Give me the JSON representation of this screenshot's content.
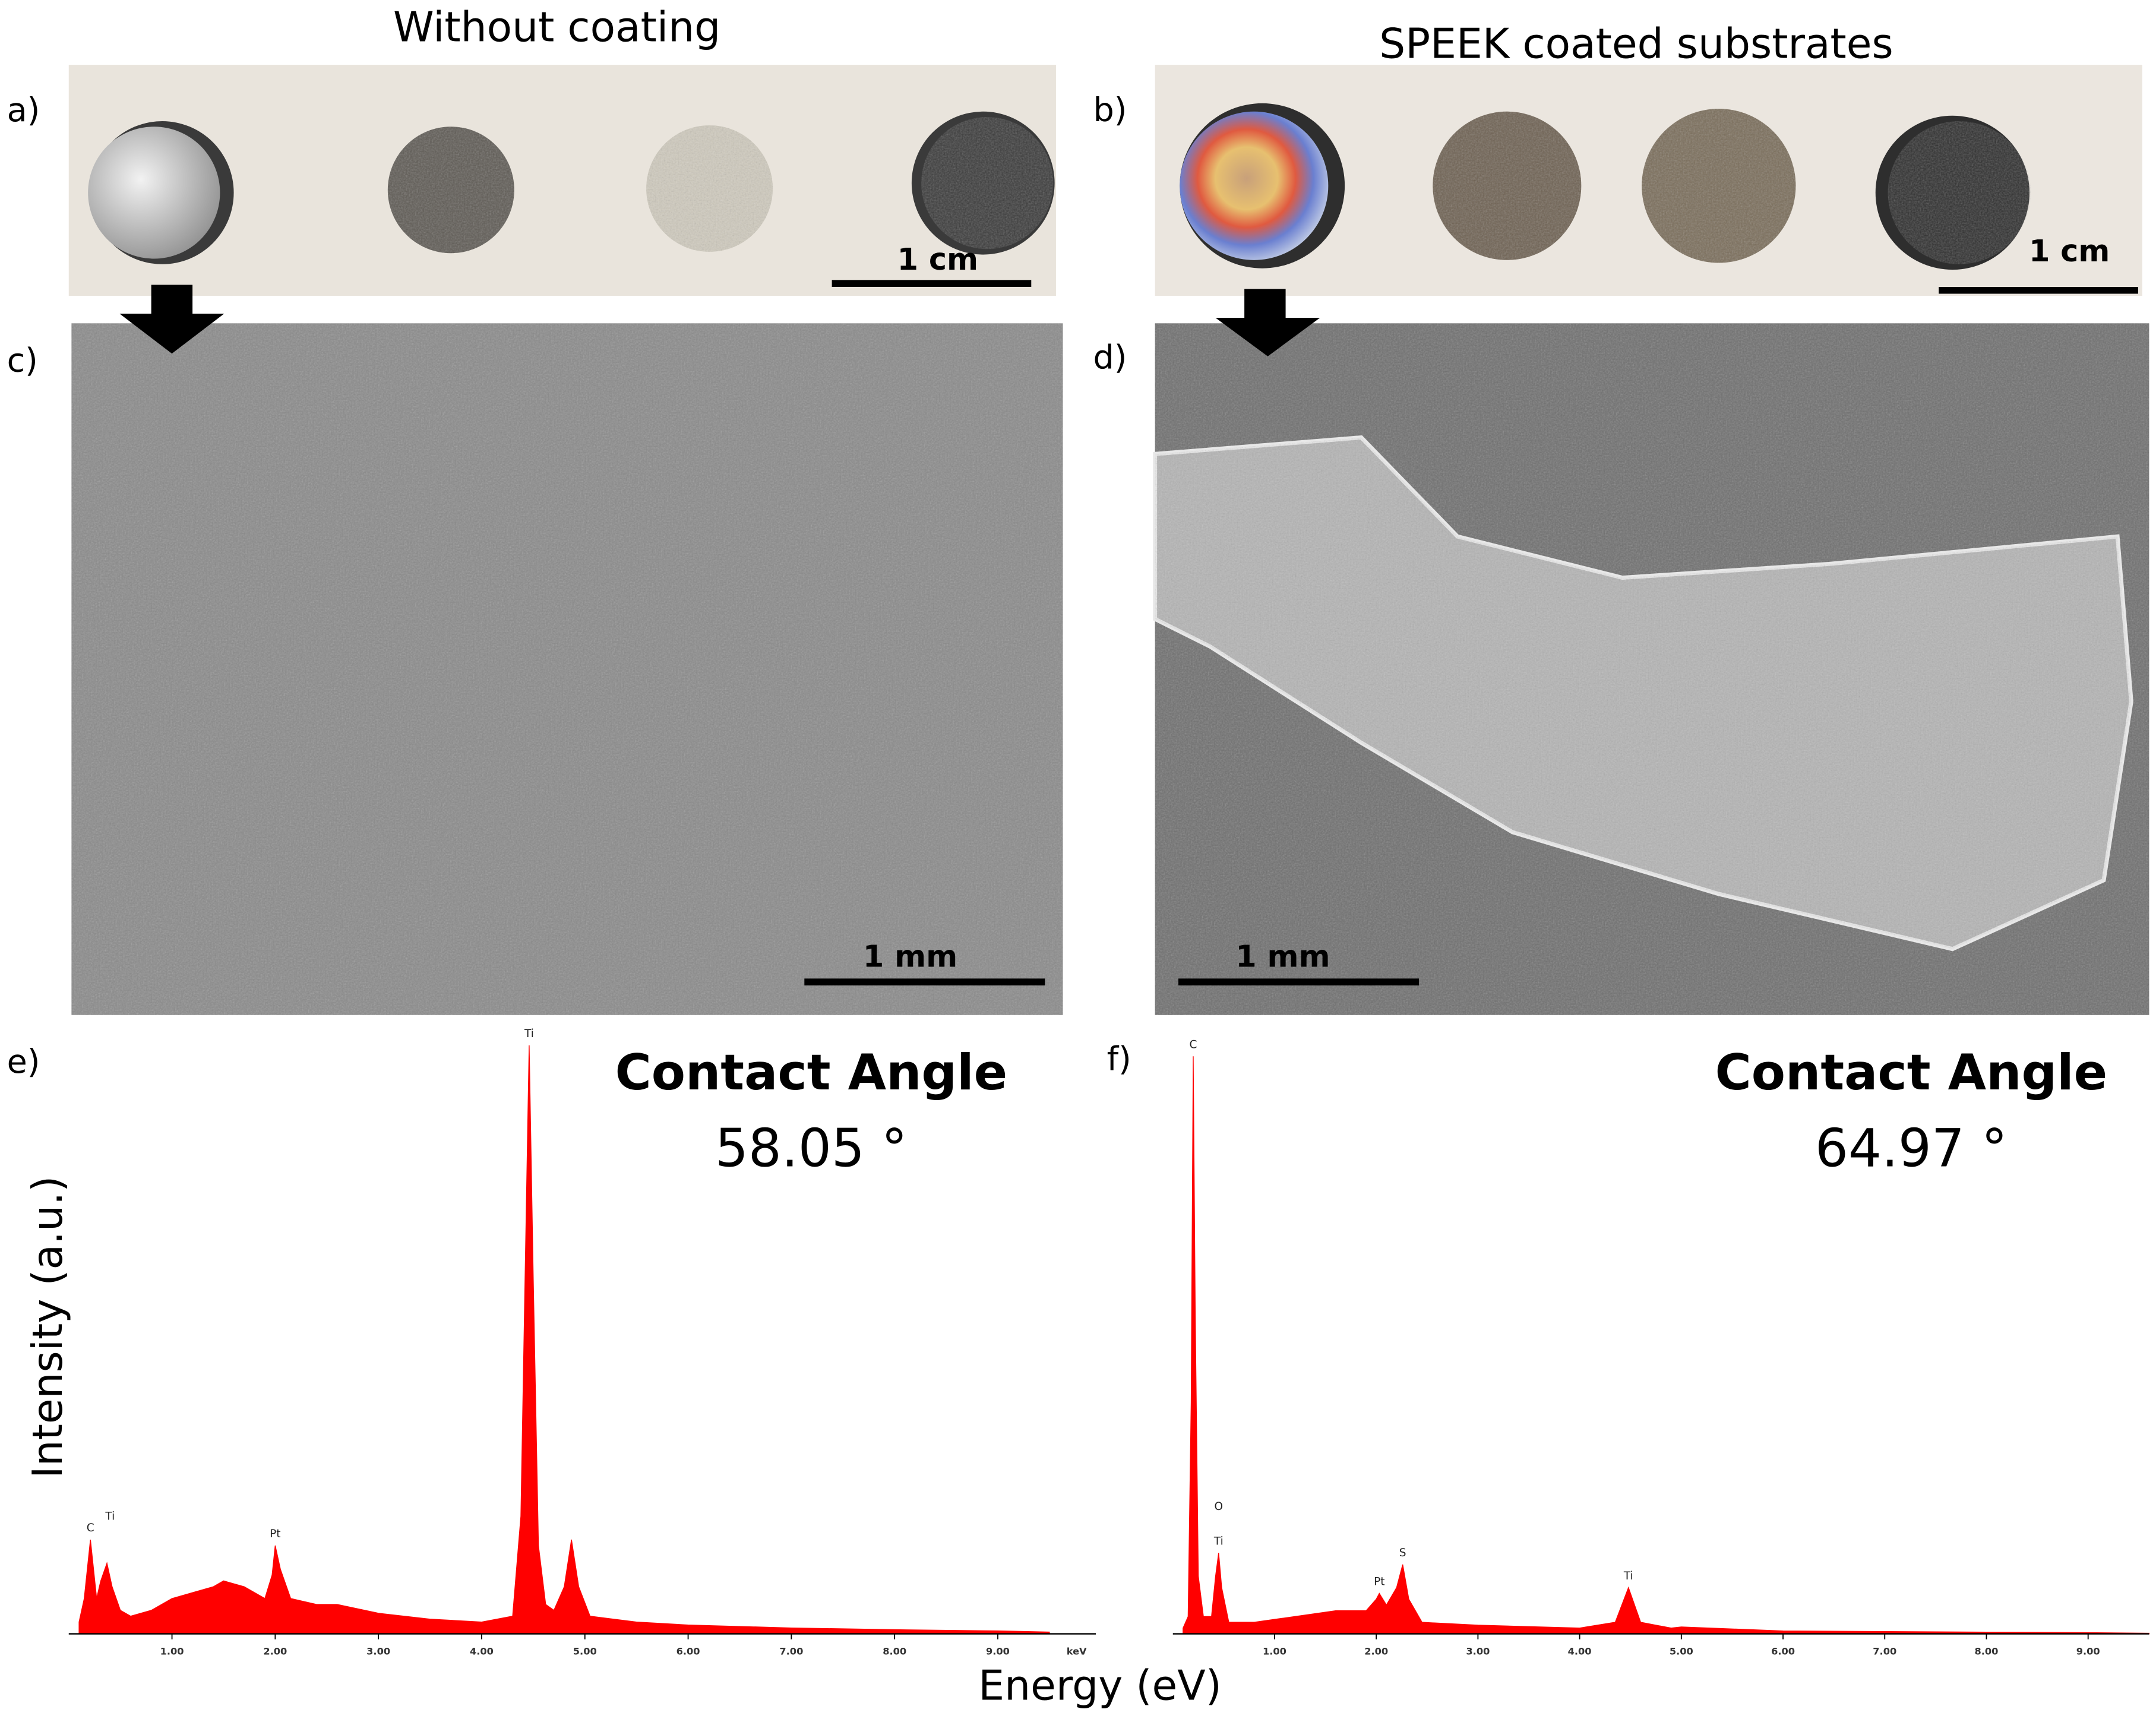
{
  "headers": [
    "Without coating",
    "SPEEK coated substrates"
  ],
  "panels": [
    {
      "label": "a)",
      "scale_bar": "1 cm"
    },
    {
      "label": "b)",
      "scale_bar": "1 cm"
    },
    {
      "label": "c)",
      "scale_bar": "1 mm"
    },
    {
      "label": "d)",
      "scale_bar": "1 mm"
    },
    {
      "label": "e)"
    },
    {
      "label": "f)"
    }
  ],
  "axis_labels": {
    "y": "Intensity (a.u.)",
    "x": "Energy (eV)"
  },
  "chart_data": [
    {
      "type": "area",
      "title": "Contact Angle",
      "subtitle": "58.05 °",
      "x": [
        0.1,
        0.15,
        0.21,
        0.27,
        0.31,
        0.37,
        0.42,
        0.5,
        0.6,
        0.8,
        1.0,
        1.2,
        1.4,
        1.5,
        1.7,
        1.9,
        1.97,
        2.0,
        2.05,
        2.15,
        2.4,
        2.6,
        3.0,
        3.5,
        4.0,
        4.3,
        4.38,
        4.42,
        4.46,
        4.5,
        4.55,
        4.62,
        4.7,
        4.8,
        4.87,
        4.94,
        5.05,
        5.5,
        6.0,
        7.0,
        8.0,
        9.0,
        9.5
      ],
      "series": [
        {
          "color": "#ff0000",
          "values": [
            2,
            6,
            16,
            6,
            9,
            12,
            8,
            4,
            3,
            4,
            6,
            7,
            8,
            9,
            8,
            6,
            10,
            15,
            11,
            6,
            5,
            5,
            3.5,
            2.5,
            2,
            3,
            20,
            60,
            100,
            60,
            15,
            5,
            4,
            8,
            16,
            8,
            3,
            2,
            1.5,
            1,
            0.7,
            0.5,
            0.3
          ]
        }
      ],
      "xlim": [
        0,
        9.95
      ],
      "ylim": [
        0,
        100
      ],
      "xticks": [
        {
          "value": 1,
          "label": "1.00"
        },
        {
          "value": 2,
          "label": "2.00"
        },
        {
          "value": 3,
          "label": "3.00"
        },
        {
          "value": 4,
          "label": "4.00"
        },
        {
          "value": 5,
          "label": "5.00"
        },
        {
          "value": 6,
          "label": "6.00"
        },
        {
          "value": 7,
          "label": "7.00"
        },
        {
          "value": 8,
          "label": "8.00"
        },
        {
          "value": 9,
          "label": "9.00"
        }
      ],
      "x_unit": "keV",
      "annotations": [
        {
          "label": "C",
          "x": 0.21,
          "y": 16
        },
        {
          "label": "Ti",
          "x": 0.4,
          "y": 18
        },
        {
          "label": "Pt",
          "x": 2.0,
          "y": 15
        },
        {
          "label": "Ti",
          "x": 4.46,
          "y": 100
        }
      ]
    },
    {
      "type": "area",
      "title": "Contact Angle",
      "subtitle": "64.97 °",
      "x": [
        0.1,
        0.15,
        0.18,
        0.2,
        0.22,
        0.25,
        0.3,
        0.38,
        0.42,
        0.45,
        0.48,
        0.55,
        0.8,
        1.2,
        1.6,
        1.9,
        2.0,
        2.03,
        2.1,
        2.2,
        2.26,
        2.32,
        2.45,
        3.0,
        4.0,
        4.35,
        4.48,
        4.6,
        4.9,
        5.0,
        6.0,
        7.0,
        8.0,
        9.0,
        9.6
      ],
      "series": [
        {
          "color": "#ff0000",
          "values": [
            1,
            3,
            40,
            100,
            55,
            10,
            3,
            3,
            10,
            14,
            8,
            2,
            2,
            3,
            4,
            4,
            6,
            7,
            5,
            8,
            12,
            6,
            2,
            1.5,
            1,
            2,
            8,
            2,
            1,
            1.2,
            0.5,
            0.4,
            0.3,
            0.2,
            0.1
          ]
        }
      ],
      "xlim": [
        0,
        9.6
      ],
      "ylim": [
        0,
        100
      ],
      "xticks": [
        {
          "value": 1,
          "label": "1.00"
        },
        {
          "value": 2,
          "label": "2.00"
        },
        {
          "value": 3,
          "label": "3.00"
        },
        {
          "value": 4,
          "label": "4.00"
        },
        {
          "value": 5,
          "label": "5.00"
        },
        {
          "value": 6,
          "label": "6.00"
        },
        {
          "value": 7,
          "label": "7.00"
        },
        {
          "value": 8,
          "label": "8.00"
        },
        {
          "value": 9,
          "label": "9.00"
        }
      ],
      "annotations": [
        {
          "label": "C",
          "x": 0.2,
          "y": 100
        },
        {
          "label": "O",
          "x": 0.45,
          "y": 20
        },
        {
          "label": "Ti",
          "x": 0.45,
          "y": 14
        },
        {
          "label": "Pt",
          "x": 2.03,
          "y": 7
        },
        {
          "label": "S",
          "x": 2.26,
          "y": 12
        },
        {
          "label": "Ti",
          "x": 4.48,
          "y": 8
        }
      ]
    }
  ]
}
